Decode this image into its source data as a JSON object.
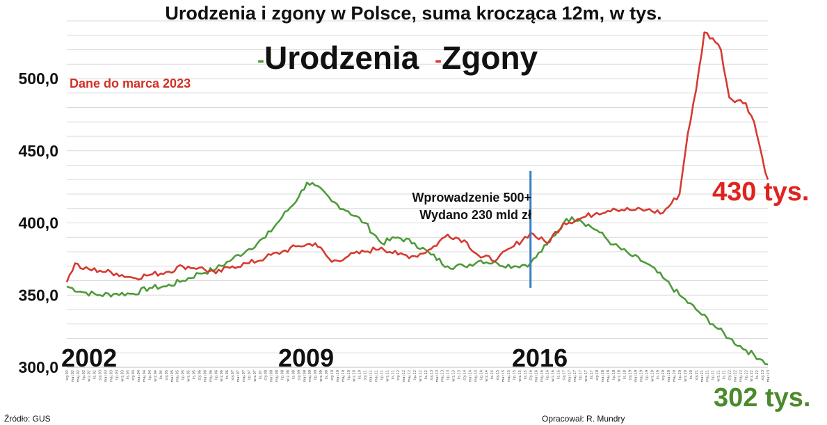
{
  "chart_data": {
    "type": "line",
    "title": "Urodzenia i zgony w Polsce, suma krocząca 12m, w tys.",
    "legend": {
      "placement": "top-center",
      "entries": [
        {
          "marker": "-",
          "name": "Urodzenia",
          "color": "#4e9a3a"
        },
        {
          "marker": "-",
          "name": "Zgony",
          "color": "#d63a2f"
        }
      ]
    },
    "note": "Dane do marca 2023",
    "ylim": [
      300,
      540
    ],
    "yticks": [
      300,
      350,
      400,
      450,
      500
    ],
    "ytick_labels": [
      "300,0",
      "350,0",
      "400,0",
      "450,0",
      "500,0"
    ],
    "grid": true,
    "x_range": [
      "2002-01",
      "2023-03"
    ],
    "x_years": [
      2002,
      2003,
      2004,
      2005,
      2006,
      2007,
      2008,
      2009,
      2010,
      2011,
      2012,
      2013,
      2014,
      2015,
      2016,
      2017,
      2018,
      2019,
      2020,
      2021,
      2022,
      2023
    ],
    "x_tick_months": [
      "sty",
      "maj",
      "wrz"
    ],
    "x_tick_style": "month abbreviation + two-digit year, rotated, every second month",
    "year_labels": [
      {
        "label": "2002",
        "x": "2002-01"
      },
      {
        "label": "2009",
        "x": "2009-01"
      },
      {
        "label": "2016",
        "x": "2016-01"
      }
    ],
    "series": [
      {
        "name": "Urodzenia",
        "color": "#4e9a3a",
        "end_label": "302 tys.",
        "points": [
          [
            "2002-01",
            356
          ],
          [
            "2002-07",
            352
          ],
          [
            "2003-01",
            350
          ],
          [
            "2003-07",
            351
          ],
          [
            "2004-01",
            351
          ],
          [
            "2004-07",
            355
          ],
          [
            "2005-01",
            356
          ],
          [
            "2005-07",
            360
          ],
          [
            "2006-01",
            365
          ],
          [
            "2006-07",
            368
          ],
          [
            "2007-01",
            375
          ],
          [
            "2007-07",
            382
          ],
          [
            "2008-01",
            390
          ],
          [
            "2008-07",
            404
          ],
          [
            "2009-01",
            418
          ],
          [
            "2009-04",
            428
          ],
          [
            "2009-07",
            426
          ],
          [
            "2010-01",
            415
          ],
          [
            "2010-07",
            408
          ],
          [
            "2011-01",
            400
          ],
          [
            "2011-07",
            386
          ],
          [
            "2012-01",
            390
          ],
          [
            "2012-07",
            386
          ],
          [
            "2013-01",
            378
          ],
          [
            "2013-07",
            370
          ],
          [
            "2014-01",
            370
          ],
          [
            "2014-07",
            374
          ],
          [
            "2015-01",
            372
          ],
          [
            "2015-07",
            370
          ],
          [
            "2016-01",
            372
          ],
          [
            "2016-07",
            385
          ],
          [
            "2017-01",
            400
          ],
          [
            "2017-04",
            404
          ],
          [
            "2017-07",
            402
          ],
          [
            "2018-01",
            395
          ],
          [
            "2018-07",
            385
          ],
          [
            "2019-01",
            378
          ],
          [
            "2019-07",
            372
          ],
          [
            "2020-01",
            362
          ],
          [
            "2020-07",
            350
          ],
          [
            "2021-01",
            340
          ],
          [
            "2021-07",
            330
          ],
          [
            "2022-01",
            320
          ],
          [
            "2022-07",
            312
          ],
          [
            "2023-01",
            305
          ],
          [
            "2023-03",
            302
          ]
        ]
      },
      {
        "name": "Zgony",
        "color": "#d63a2f",
        "end_label": "430 tys.",
        "points": [
          [
            "2002-01",
            359
          ],
          [
            "2002-04",
            372
          ],
          [
            "2002-07",
            368
          ],
          [
            "2003-01",
            367
          ],
          [
            "2003-07",
            365
          ],
          [
            "2004-01",
            362
          ],
          [
            "2004-07",
            364
          ],
          [
            "2005-01",
            366
          ],
          [
            "2005-07",
            370
          ],
          [
            "2006-01",
            369
          ],
          [
            "2006-07",
            365
          ],
          [
            "2007-01",
            370
          ],
          [
            "2007-07",
            372
          ],
          [
            "2008-01",
            376
          ],
          [
            "2008-07",
            380
          ],
          [
            "2009-01",
            384
          ],
          [
            "2009-07",
            386
          ],
          [
            "2010-01",
            373
          ],
          [
            "2010-07",
            377
          ],
          [
            "2011-01",
            380
          ],
          [
            "2011-07",
            383
          ],
          [
            "2012-01",
            378
          ],
          [
            "2012-07",
            377
          ],
          [
            "2013-01",
            382
          ],
          [
            "2013-07",
            392
          ],
          [
            "2014-01",
            388
          ],
          [
            "2014-07",
            376
          ],
          [
            "2015-01",
            375
          ],
          [
            "2015-07",
            384
          ],
          [
            "2016-01",
            393
          ],
          [
            "2016-07",
            386
          ],
          [
            "2017-01",
            400
          ],
          [
            "2017-07",
            403
          ],
          [
            "2018-01",
            407
          ],
          [
            "2018-07",
            410
          ],
          [
            "2019-01",
            409
          ],
          [
            "2019-07",
            409
          ],
          [
            "2020-01",
            407
          ],
          [
            "2020-07",
            420
          ],
          [
            "2020-10",
            462
          ],
          [
            "2021-01",
            492
          ],
          [
            "2021-04",
            532
          ],
          [
            "2021-07",
            528
          ],
          [
            "2021-10",
            520
          ],
          [
            "2022-01",
            487
          ],
          [
            "2022-07",
            483
          ],
          [
            "2022-10",
            470
          ],
          [
            "2023-01",
            445
          ],
          [
            "2023-03",
            430
          ]
        ]
      }
    ],
    "vline": {
      "x": "2016-01",
      "y_from": 355,
      "y_to": 436,
      "color": "#3a7dc1",
      "label_lines": [
        "Wprowadzenie 500+",
        "Wydano 230 mld zł"
      ]
    }
  },
  "footer": {
    "source": "Źródło: GUS",
    "author": "Opracował: R. Mundry"
  }
}
